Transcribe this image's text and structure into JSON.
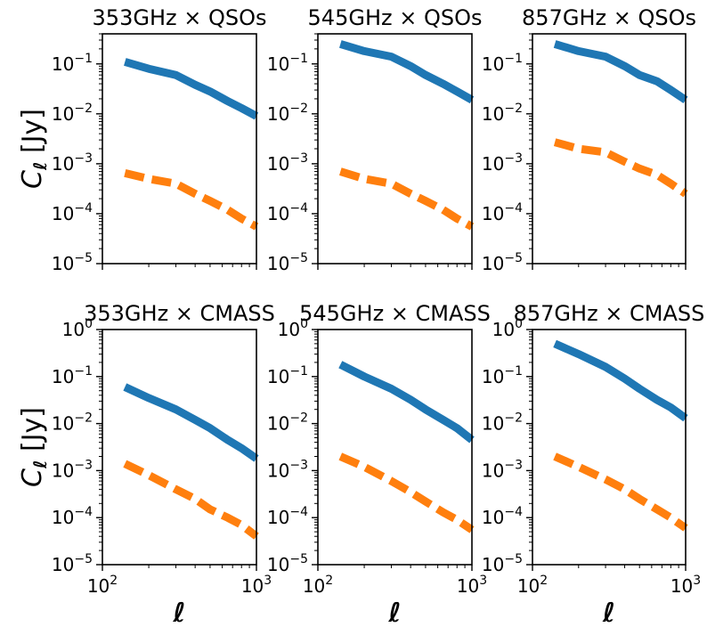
{
  "chart_data": [
    {
      "type": "line",
      "title": "353GHz × QSOs",
      "ylabel": "C_ℓ [Jy]",
      "xlabel": "",
      "xscale": "log",
      "yscale": "log",
      "xlim": [
        100,
        1000
      ],
      "ylim": [
        1e-05,
        0.4
      ],
      "series": [
        {
          "color": "#1f77b4",
          "style": "solid",
          "x": [
            140,
            200,
            300,
            400,
            500,
            650,
            800,
            1000
          ],
          "values": [
            0.11,
            0.08,
            0.06,
            0.038,
            0.028,
            0.018,
            0.013,
            0.009
          ]
        },
        {
          "color": "#ff7f0e",
          "style": "dashed",
          "x": [
            140,
            200,
            300,
            400,
            500,
            650,
            800,
            1000
          ],
          "values": [
            0.00065,
            0.0005,
            0.0004,
            0.00025,
            0.00018,
            0.00012,
            8e-05,
            5.5e-05
          ]
        }
      ]
    },
    {
      "type": "line",
      "title": "545GHz × QSOs",
      "ylabel": "",
      "xlabel": "",
      "xscale": "log",
      "yscale": "log",
      "xlim": [
        100,
        1000
      ],
      "ylim": [
        1e-05,
        0.4
      ],
      "series": [
        {
          "color": "#1f77b4",
          "style": "solid",
          "x": [
            140,
            200,
            300,
            400,
            500,
            650,
            800,
            1000
          ],
          "values": [
            0.25,
            0.18,
            0.14,
            0.09,
            0.06,
            0.04,
            0.028,
            0.019
          ]
        },
        {
          "color": "#ff7f0e",
          "style": "dashed",
          "x": [
            140,
            200,
            300,
            400,
            500,
            650,
            800,
            1000
          ],
          "values": [
            0.0007,
            0.0005,
            0.0004,
            0.00025,
            0.00018,
            0.00012,
            8e-05,
            5.5e-05
          ]
        }
      ]
    },
    {
      "type": "line",
      "title": "857GHz × QSOs",
      "ylabel": "",
      "xlabel": "",
      "xscale": "log",
      "yscale": "log",
      "xlim": [
        100,
        1000
      ],
      "ylim": [
        1e-05,
        0.4
      ],
      "series": [
        {
          "color": "#1f77b4",
          "style": "solid",
          "x": [
            140,
            200,
            300,
            400,
            500,
            650,
            800,
            1000
          ],
          "values": [
            0.25,
            0.18,
            0.14,
            0.09,
            0.06,
            0.045,
            0.03,
            0.019
          ]
        },
        {
          "color": "#ff7f0e",
          "style": "dashed",
          "x": [
            140,
            200,
            300,
            400,
            500,
            650,
            800,
            1000
          ],
          "values": [
            0.0027,
            0.002,
            0.0017,
            0.0011,
            0.0008,
            0.0006,
            0.0004,
            0.00025
          ]
        }
      ]
    },
    {
      "type": "line",
      "title": "353GHz × CMASS",
      "ylabel": "C_ℓ [Jy]",
      "xlabel": "ℓ",
      "xscale": "log",
      "yscale": "log",
      "xlim": [
        100,
        1000
      ],
      "ylim": [
        1e-05,
        1
      ],
      "series": [
        {
          "color": "#1f77b4",
          "style": "solid",
          "x": [
            140,
            200,
            300,
            400,
            500,
            650,
            800,
            1000
          ],
          "values": [
            0.06,
            0.035,
            0.02,
            0.012,
            0.008,
            0.0045,
            0.003,
            0.0018
          ]
        },
        {
          "color": "#ff7f0e",
          "style": "dashed",
          "x": [
            140,
            200,
            300,
            400,
            500,
            650,
            800,
            1000
          ],
          "values": [
            0.0014,
            0.0008,
            0.0004,
            0.00025,
            0.00015,
            0.0001,
            7e-05,
            4e-05
          ]
        }
      ]
    },
    {
      "type": "line",
      "title": "545GHz × CMASS",
      "ylabel": "",
      "xlabel": "ℓ",
      "xscale": "log",
      "yscale": "log",
      "xlim": [
        100,
        1000
      ],
      "ylim": [
        1e-05,
        1
      ],
      "series": [
        {
          "color": "#1f77b4",
          "style": "solid",
          "x": [
            140,
            200,
            300,
            400,
            500,
            650,
            800,
            1000
          ],
          "values": [
            0.18,
            0.1,
            0.055,
            0.032,
            0.02,
            0.012,
            0.008,
            0.0045
          ]
        },
        {
          "color": "#ff7f0e",
          "style": "dashed",
          "x": [
            140,
            200,
            300,
            400,
            500,
            650,
            800,
            1000
          ],
          "values": [
            0.002,
            0.0012,
            0.0006,
            0.00035,
            0.00022,
            0.00013,
            9e-05,
            5.5e-05
          ]
        }
      ]
    },
    {
      "type": "line",
      "title": "857GHz × CMASS",
      "ylabel": "",
      "xlabel": "ℓ",
      "xscale": "log",
      "yscale": "log",
      "xlim": [
        100,
        1000
      ],
      "ylim": [
        1e-05,
        1
      ],
      "series": [
        {
          "color": "#1f77b4",
          "style": "solid",
          "x": [
            140,
            200,
            300,
            400,
            500,
            650,
            800,
            1000
          ],
          "values": [
            0.5,
            0.3,
            0.16,
            0.09,
            0.055,
            0.032,
            0.022,
            0.013
          ]
        },
        {
          "color": "#ff7f0e",
          "style": "dashed",
          "x": [
            140,
            200,
            300,
            400,
            500,
            650,
            800,
            1000
          ],
          "values": [
            0.002,
            0.0012,
            0.00065,
            0.0004,
            0.00025,
            0.00015,
            0.0001,
            6e-05
          ]
        }
      ]
    }
  ]
}
